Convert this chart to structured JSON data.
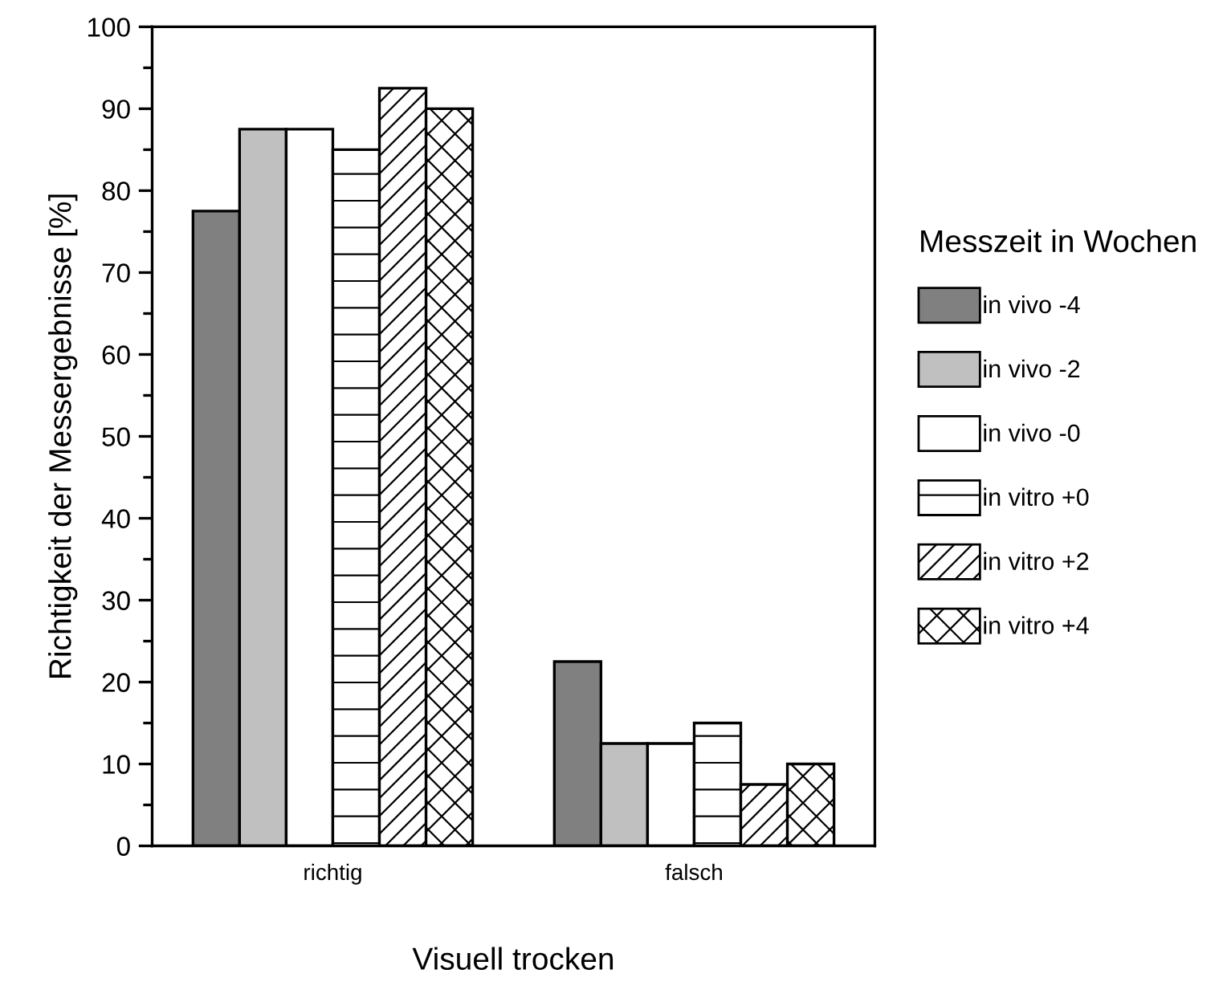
{
  "chart_data": {
    "type": "bar",
    "xlabel": "Visuell trocken",
    "ylabel": "Richtigkeit der Messergebnisse [%]",
    "legend_title": "Messzeit in Wochen",
    "legend": "right",
    "grid": false,
    "categories": [
      "richtig",
      "falsch"
    ],
    "ylim": [
      0,
      100
    ],
    "yticks": [
      0,
      10,
      20,
      30,
      40,
      50,
      60,
      70,
      80,
      90,
      100
    ],
    "series": [
      {
        "name": "in vivo -4",
        "color": "#808080",
        "values": [
          77.5,
          22.5
        ]
      },
      {
        "name": "in vivo -2",
        "color": "#c0c0c0",
        "values": [
          87.5,
          12.5
        ]
      },
      {
        "name": "in vivo -0",
        "color": "#ffffff",
        "values": [
          87.5,
          12.5
        ]
      },
      {
        "name": "in vitro +0",
        "color": "#ffffff",
        "values": [
          85,
          15
        ]
      },
      {
        "name": "in vitro +2",
        "color": "#ffffff",
        "values": [
          92.5,
          7.5
        ]
      },
      {
        "name": "in vitro +4",
        "color": "#ffffff",
        "values": [
          90,
          10
        ]
      }
    ]
  }
}
